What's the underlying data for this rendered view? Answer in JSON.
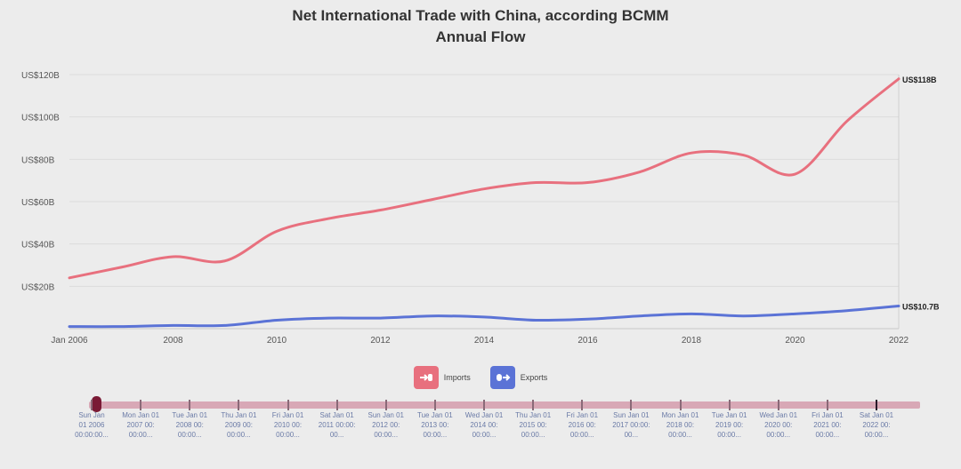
{
  "chart_data": {
    "type": "line",
    "title": "Net International Trade with China, according BCMM",
    "subtitle": "Annual Flow",
    "xlabel": "",
    "ylabel": "",
    "x": [
      2006,
      2007,
      2008,
      2009,
      2010,
      2011,
      2012,
      2013,
      2014,
      2015,
      2016,
      2017,
      2018,
      2019,
      2020,
      2021,
      2022
    ],
    "x_tick_labels": [
      "Jan 2006",
      "2008",
      "2010",
      "2012",
      "2014",
      "2016",
      "2018",
      "2020",
      "2022"
    ],
    "x_tick_values": [
      2006,
      2008,
      2010,
      2012,
      2014,
      2016,
      2018,
      2020,
      2022
    ],
    "y_tick_labels": [
      "US$20B",
      "US$40B",
      "US$60B",
      "US$80B",
      "US$100B",
      "US$120B"
    ],
    "y_tick_values": [
      20,
      40,
      60,
      80,
      100,
      120
    ],
    "ylim": [
      0,
      120
    ],
    "grid": true,
    "series": [
      {
        "name": "Imports",
        "color": "#e8707e",
        "values": [
          24,
          29,
          34,
          32,
          46,
          52,
          56,
          61,
          66,
          69,
          69,
          74,
          83,
          82,
          73,
          98,
          118
        ],
        "end_label": "US$118B"
      },
      {
        "name": "Exports",
        "color": "#5b73d6",
        "values": [
          1,
          1,
          1.5,
          1.5,
          4,
          5,
          5,
          6,
          5.5,
          4,
          4.5,
          6,
          7,
          6,
          7,
          8.5,
          10.7
        ],
        "end_label": "US$10.7B"
      }
    ],
    "legend": "bottom-center"
  },
  "legend": {
    "imports_label": "Imports",
    "exports_label": "Exports",
    "imports_icon": "import-icon",
    "exports_icon": "export-icon"
  },
  "timeline": {
    "labels": [
      [
        "Sun Jan",
        "01 2006",
        "00:00:00..."
      ],
      [
        "Mon Jan 01",
        "2007 00:",
        "00:00..."
      ],
      [
        "Tue Jan 01",
        "2008 00:",
        "00:00..."
      ],
      [
        "Thu Jan 01",
        "2009 00:",
        "00:00..."
      ],
      [
        "Fri Jan 01",
        "2010 00:",
        "00:00..."
      ],
      [
        "Sat Jan 01",
        "2011 00:00:",
        "00..."
      ],
      [
        "Sun Jan 01",
        "2012 00:",
        "00:00..."
      ],
      [
        "Tue Jan 01",
        "2013 00:",
        "00:00..."
      ],
      [
        "Wed Jan 01",
        "2014 00:",
        "00:00..."
      ],
      [
        "Thu Jan 01",
        "2015 00:",
        "00:00..."
      ],
      [
        "Fri Jan 01",
        "2016 00:",
        "00:00..."
      ],
      [
        "Sun Jan 01",
        "2017 00:00:",
        "00..."
      ],
      [
        "Mon Jan 01",
        "2018 00:",
        "00:00..."
      ],
      [
        "Tue Jan 01",
        "2019 00:",
        "00:00..."
      ],
      [
        "Wed Jan 01",
        "2020 00:",
        "00:00..."
      ],
      [
        "Fri Jan 01",
        "2021 00:",
        "00:00..."
      ],
      [
        "Sat Jan 01",
        "2022 00:",
        "00:00..."
      ]
    ]
  }
}
